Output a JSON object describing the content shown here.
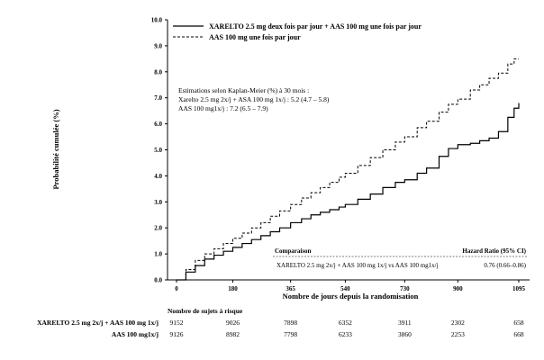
{
  "chart_data": {
    "type": "line",
    "ylabel": "Probabilité cumulée (%)",
    "xlabel": "Nombre de jours depuis la randomisation",
    "xlim": [
      0,
      1095
    ],
    "ylim": [
      0,
      10
    ],
    "x_ticks": [
      0,
      180,
      365,
      540,
      730,
      900,
      1095
    ],
    "y_ticks": [
      "0.0",
      "1.0",
      "2.0",
      "3.0",
      "4.0",
      "5.0",
      "6.0",
      "7.0",
      "8.0",
      "9.0",
      "10.0"
    ],
    "legend": {
      "position": "top-left",
      "entries": [
        "XARELTO 2.5 mg deux fois par jour + AAS 100 mg une fois par jour",
        "AAS 100 mg une fois par jour"
      ]
    },
    "series": [
      {
        "name": "XARELTO 2.5 mg deux fois par jour + AAS 100 mg une fois par jour",
        "style": "solid",
        "color": "#000000",
        "x": [
          0,
          30,
          60,
          90,
          120,
          150,
          180,
          210,
          240,
          270,
          300,
          330,
          365,
          400,
          430,
          460,
          490,
          520,
          540,
          580,
          620,
          660,
          700,
          730,
          770,
          800,
          840,
          870,
          900,
          940,
          970,
          1000,
          1030,
          1060,
          1080,
          1095
        ],
        "y": [
          0.0,
          0.3,
          0.55,
          0.8,
          0.95,
          1.1,
          1.25,
          1.4,
          1.55,
          1.7,
          1.85,
          2.0,
          2.2,
          2.35,
          2.5,
          2.6,
          2.7,
          2.8,
          2.9,
          3.1,
          3.3,
          3.55,
          3.75,
          3.85,
          4.1,
          4.3,
          4.75,
          5.05,
          5.2,
          5.25,
          5.35,
          5.45,
          5.7,
          6.25,
          6.6,
          6.8
        ]
      },
      {
        "name": "AAS 100 mg une fois par jour",
        "style": "dashed",
        "color": "#000000",
        "x": [
          0,
          30,
          60,
          90,
          120,
          150,
          180,
          210,
          240,
          270,
          300,
          330,
          365,
          400,
          430,
          460,
          490,
          520,
          540,
          580,
          620,
          660,
          700,
          730,
          770,
          800,
          840,
          870,
          900,
          940,
          970,
          1000,
          1030,
          1060,
          1080,
          1095
        ],
        "y": [
          0.0,
          0.4,
          0.75,
          1.0,
          1.2,
          1.4,
          1.6,
          1.8,
          2.0,
          2.2,
          2.45,
          2.65,
          2.9,
          3.15,
          3.35,
          3.55,
          3.75,
          3.95,
          4.1,
          4.4,
          4.7,
          5.0,
          5.3,
          5.5,
          5.85,
          6.1,
          6.45,
          6.75,
          6.95,
          7.3,
          7.5,
          7.75,
          7.95,
          8.3,
          8.5,
          8.5
        ]
      }
    ],
    "annotation": {
      "lines": [
        "Estimations selon Kaplan-Meier (%) à 30 mois :",
        "Xarelto 2.5 mg 2x/j + ASA 100 mg 1x/j : 5.2 (4.7 – 5.8)",
        "AAS 100 mg1x/j : 7.2 (6.5 – 7.9)"
      ]
    },
    "comparison_box": {
      "title": "Comparaison",
      "hr_header": "Hazard Ratio (95% CI)",
      "row_label": "XARELTO 2.5 mg 2x/j + AAS 100 mg 1x/j  vs AAS 100 mg1x/j",
      "hr_value": "0.76 (0.66–0.86)"
    },
    "risk_table": {
      "title": "Nombre de sujets à risque",
      "rows": [
        {
          "label": "XARELTO 2.5 mg 2x/j + AAS 100 mg 1x/j",
          "values": [
            "9152",
            "9026",
            "7898",
            "6352",
            "3911",
            "2302",
            "658"
          ]
        },
        {
          "label": "AAS 100 mg1x/j",
          "values": [
            "9126",
            "8982",
            "7798",
            "6233",
            "3860",
            "2253",
            "668"
          ]
        }
      ]
    }
  }
}
